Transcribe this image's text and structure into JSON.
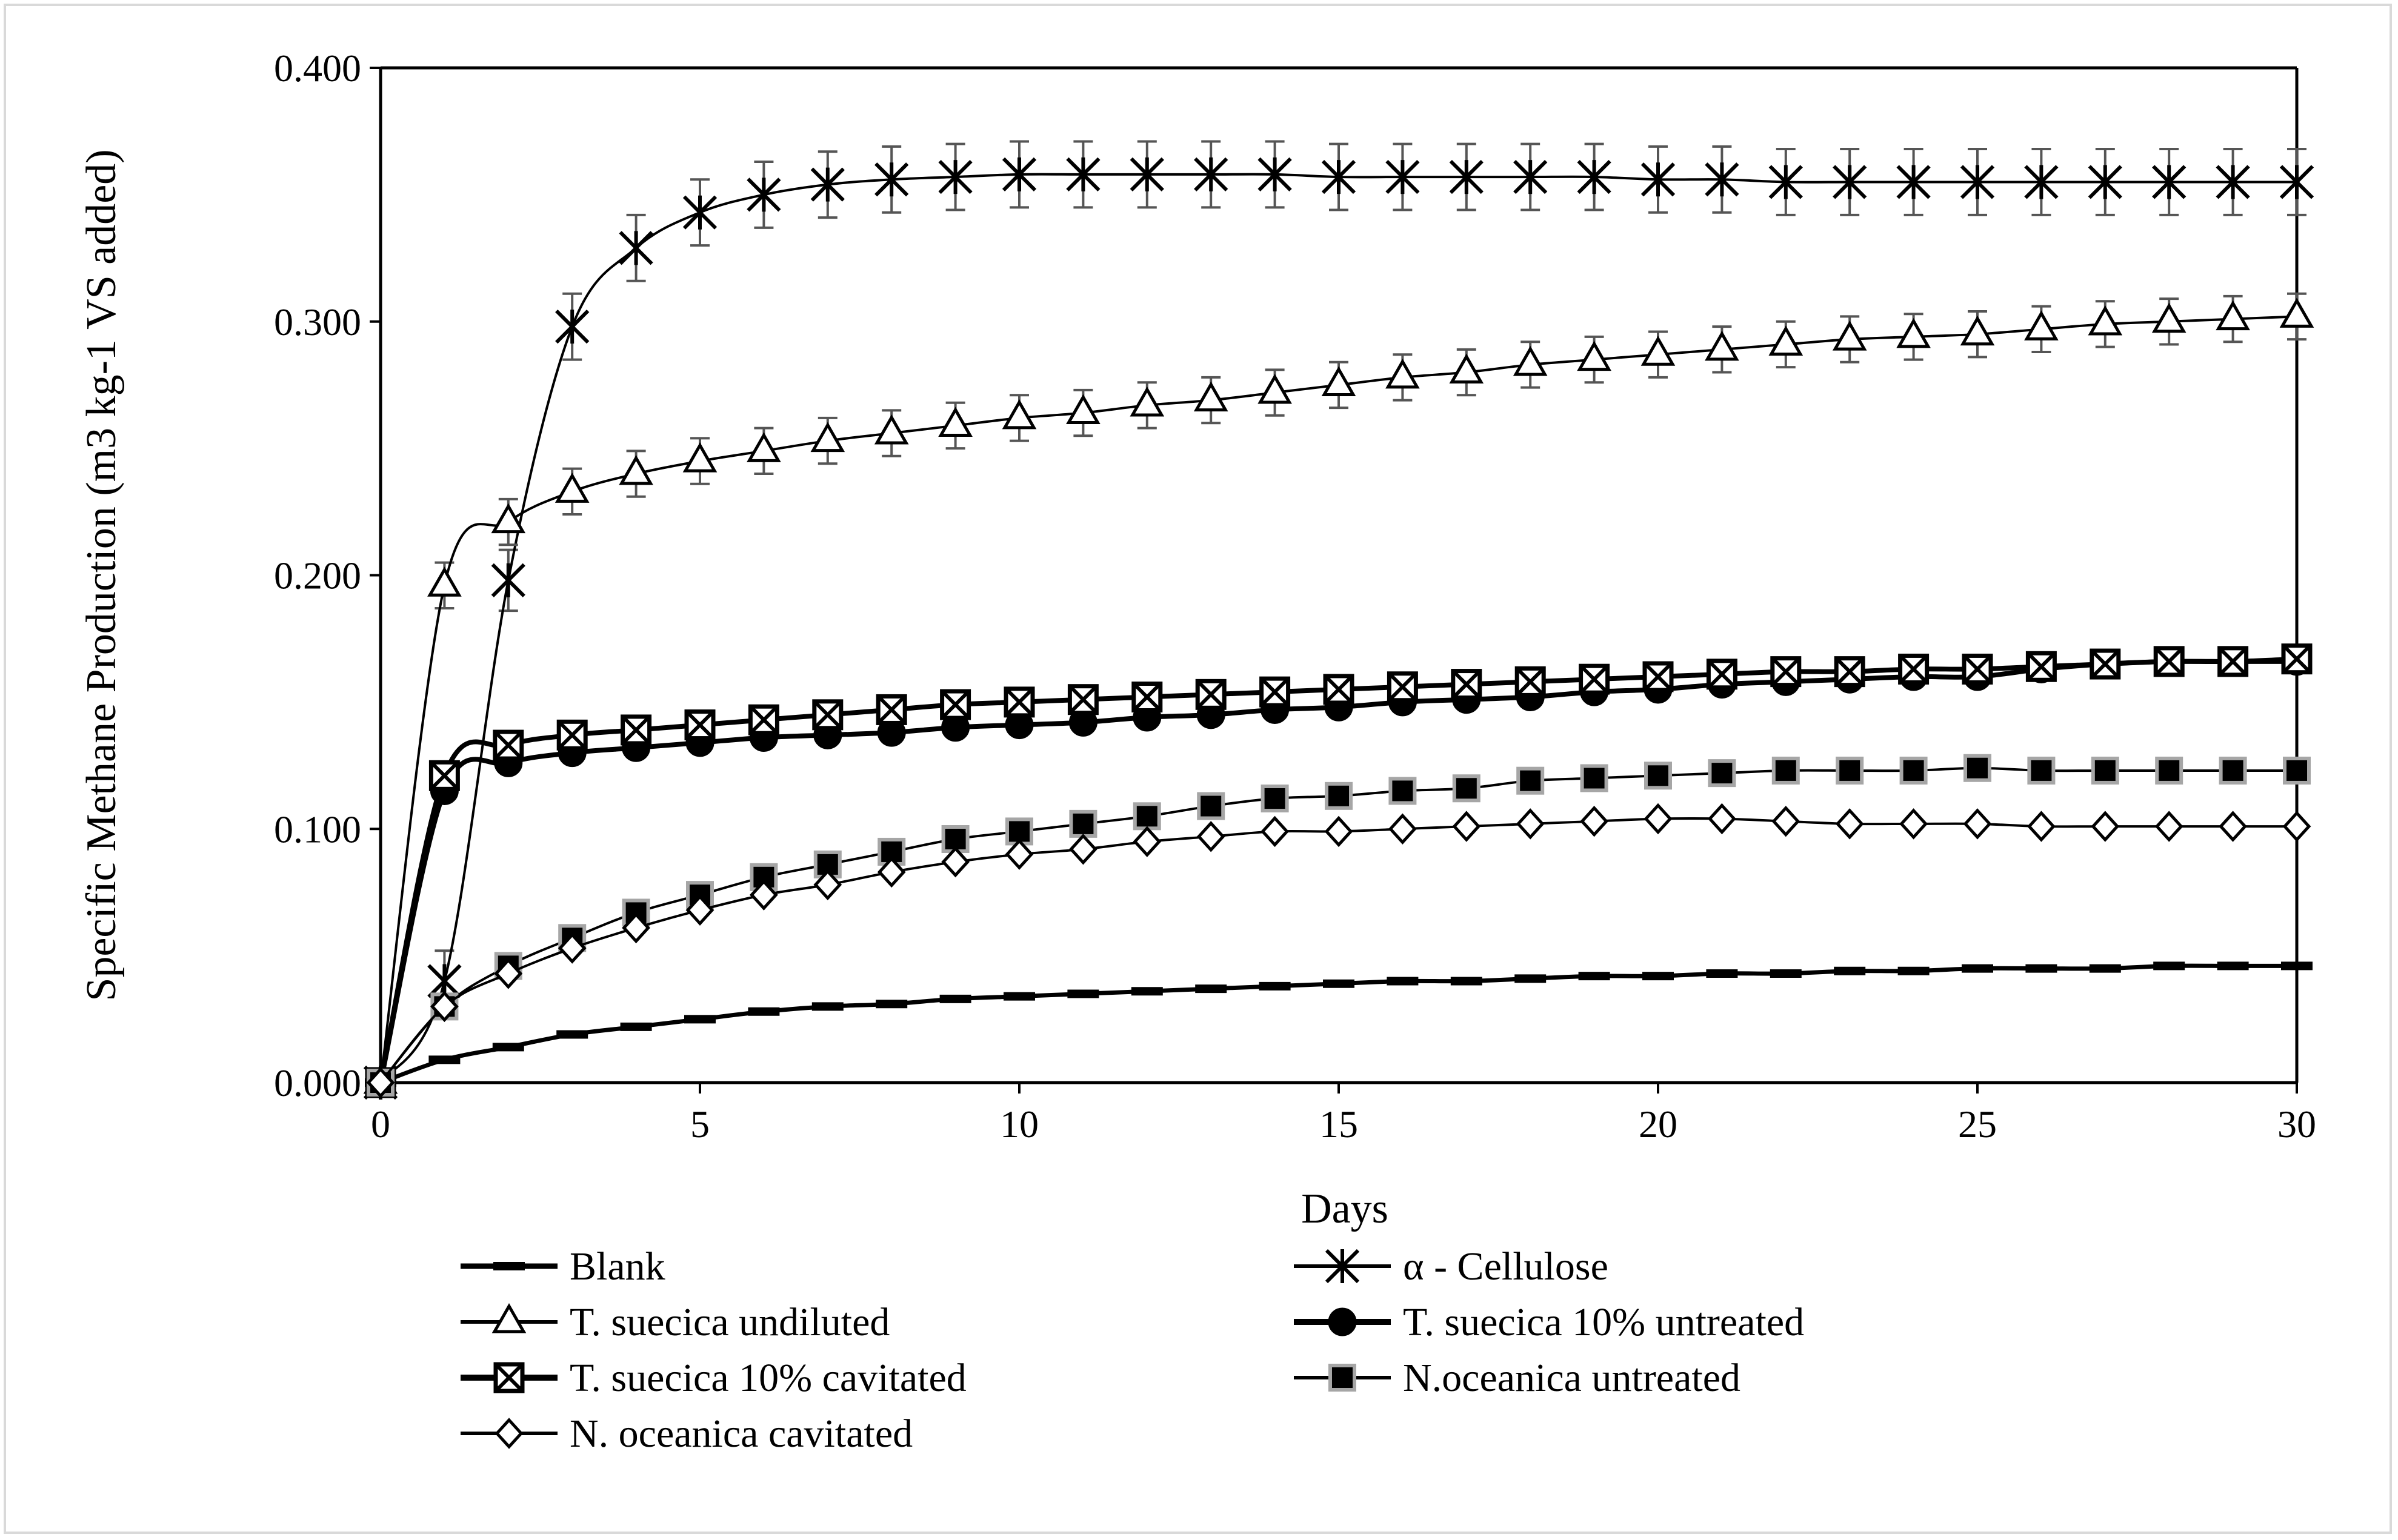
{
  "chart_data": {
    "type": "line",
    "title": "",
    "xlabel": "Days",
    "ylabel": "Specific Methane Production (m3 kg-1 VS added)",
    "xlim": [
      0,
      30
    ],
    "ylim": [
      0,
      0.4
    ],
    "x_ticks": [
      "0",
      "5",
      "10",
      "15",
      "20",
      "25",
      "30"
    ],
    "y_ticks": [
      "0.000",
      "0.100",
      "0.200",
      "0.300",
      "0.400"
    ],
    "x": [
      0,
      1,
      2,
      3,
      4,
      5,
      6,
      7,
      8,
      9,
      10,
      11,
      12,
      13,
      14,
      15,
      16,
      17,
      18,
      19,
      20,
      21,
      22,
      23,
      24,
      25,
      26,
      27,
      28,
      29,
      30
    ],
    "legend_position": "bottom",
    "series": [
      {
        "name": "Blank",
        "marker": "dash",
        "line_width": 7,
        "values": [
          0,
          0.009,
          0.014,
          0.019,
          0.022,
          0.025,
          0.028,
          0.03,
          0.031,
          0.033,
          0.034,
          0.035,
          0.036,
          0.037,
          0.038,
          0.039,
          0.04,
          0.04,
          0.041,
          0.042,
          0.042,
          0.043,
          0.043,
          0.044,
          0.044,
          0.045,
          0.045,
          0.045,
          0.046,
          0.046,
          0.046
        ],
        "errors": []
      },
      {
        "name": "α - Cellulose",
        "marker": "asterisk",
        "line_width": 4,
        "values": [
          0,
          0.04,
          0.198,
          0.298,
          0.329,
          0.343,
          0.35,
          0.354,
          0.356,
          0.357,
          0.358,
          0.358,
          0.358,
          0.358,
          0.358,
          0.357,
          0.357,
          0.357,
          0.357,
          0.357,
          0.356,
          0.356,
          0.355,
          0.355,
          0.355,
          0.355,
          0.355,
          0.355,
          0.355,
          0.355,
          0.355
        ],
        "errors": [
          0,
          0.012,
          0.012,
          0.013,
          0.013,
          0.013,
          0.013,
          0.013,
          0.013,
          0.013,
          0.013,
          0.013,
          0.013,
          0.013,
          0.013,
          0.013,
          0.013,
          0.013,
          0.013,
          0.013,
          0.013,
          0.013,
          0.013,
          0.013,
          0.013,
          0.013,
          0.013,
          0.013,
          0.013,
          0.013,
          0.013
        ]
      },
      {
        "name": "T. suecica undiluted",
        "marker": "triangle",
        "line_width": 4,
        "values": [
          0,
          0.196,
          0.221,
          0.233,
          0.24,
          0.245,
          0.249,
          0.253,
          0.256,
          0.259,
          0.262,
          0.264,
          0.267,
          0.269,
          0.272,
          0.275,
          0.278,
          0.28,
          0.283,
          0.285,
          0.287,
          0.289,
          0.291,
          0.293,
          0.294,
          0.295,
          0.297,
          0.299,
          0.3,
          0.301,
          0.302
        ],
        "errors": [
          0,
          0.009,
          0.009,
          0.009,
          0.009,
          0.009,
          0.009,
          0.009,
          0.009,
          0.009,
          0.009,
          0.009,
          0.009,
          0.009,
          0.009,
          0.009,
          0.009,
          0.009,
          0.009,
          0.009,
          0.009,
          0.009,
          0.009,
          0.009,
          0.009,
          0.009,
          0.009,
          0.009,
          0.009,
          0.009,
          0.009
        ]
      },
      {
        "name": "T. suecica 10% untreated",
        "marker": "circle",
        "line_width": 8,
        "values": [
          0,
          0.115,
          0.126,
          0.13,
          0.132,
          0.134,
          0.136,
          0.137,
          0.138,
          0.14,
          0.141,
          0.142,
          0.144,
          0.145,
          0.147,
          0.148,
          0.15,
          0.151,
          0.152,
          0.154,
          0.155,
          0.157,
          0.158,
          0.159,
          0.16,
          0.16,
          0.163,
          0.165,
          0.166,
          0.166,
          0.166
        ],
        "errors": []
      },
      {
        "name": "T. suecica 10% cavitated",
        "marker": "xbox",
        "line_width": 8,
        "values": [
          0,
          0.121,
          0.133,
          0.137,
          0.139,
          0.141,
          0.143,
          0.145,
          0.147,
          0.149,
          0.15,
          0.151,
          0.152,
          0.153,
          0.154,
          0.155,
          0.156,
          0.157,
          0.158,
          0.159,
          0.16,
          0.161,
          0.162,
          0.162,
          0.163,
          0.163,
          0.164,
          0.165,
          0.166,
          0.166,
          0.167
        ],
        "errors": []
      },
      {
        "name": "N.oceanica untreated",
        "marker": "square",
        "line_width": 4,
        "values": [
          0,
          0.03,
          0.046,
          0.057,
          0.067,
          0.074,
          0.081,
          0.086,
          0.091,
          0.096,
          0.099,
          0.102,
          0.105,
          0.109,
          0.112,
          0.113,
          0.115,
          0.116,
          0.119,
          0.12,
          0.121,
          0.122,
          0.123,
          0.123,
          0.123,
          0.124,
          0.123,
          0.123,
          0.123,
          0.123,
          0.123
        ],
        "errors": []
      },
      {
        "name": "N. oceanica cavitated",
        "marker": "diamond",
        "line_width": 4,
        "values": [
          0,
          0.03,
          0.043,
          0.053,
          0.061,
          0.068,
          0.074,
          0.078,
          0.083,
          0.087,
          0.09,
          0.092,
          0.095,
          0.097,
          0.099,
          0.099,
          0.1,
          0.101,
          0.102,
          0.103,
          0.104,
          0.104,
          0.103,
          0.102,
          0.102,
          0.102,
          0.101,
          0.101,
          0.101,
          0.101,
          0.101
        ],
        "errors": []
      }
    ]
  }
}
